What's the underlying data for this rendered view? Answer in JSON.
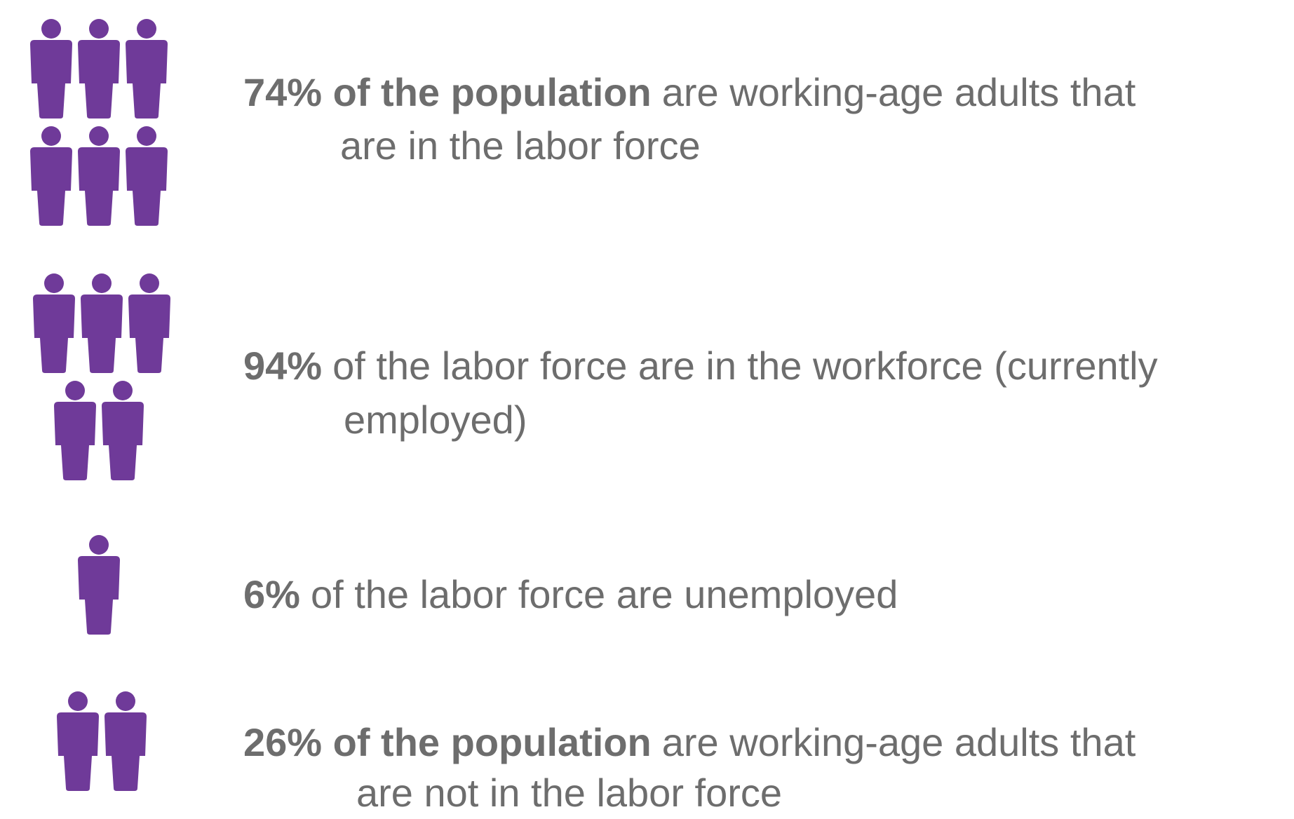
{
  "items": [
    {
      "highlight": "74% of the population",
      "text": "are working-age adults that",
      "text2": "are in the labor force"
    },
    {
      "highlight": "94%",
      "text": "of the labor force are in the workforce (currently",
      "text2": "employed)"
    },
    {
      "highlight": "6%",
      "text": "of the labor force are unemployed"
    },
    {
      "highlight": "26% of the population",
      "text": "are working-age adults that",
      "text2": "are not in the labor force"
    }
  ]
}
